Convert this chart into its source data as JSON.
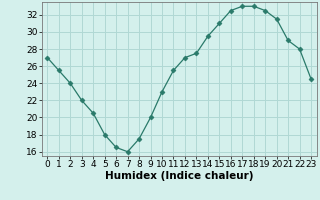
{
  "x": [
    0,
    1,
    2,
    3,
    4,
    5,
    6,
    7,
    8,
    9,
    10,
    11,
    12,
    13,
    14,
    15,
    16,
    17,
    18,
    19,
    20,
    21,
    22,
    23
  ],
  "y": [
    27,
    25.5,
    24,
    22,
    20.5,
    18,
    16.5,
    16,
    17.5,
    20,
    23,
    25.5,
    27,
    27.5,
    29.5,
    31,
    32.5,
    33,
    33,
    32.5,
    31.5,
    29,
    28,
    24.5
  ],
  "line_color": "#2a7a6a",
  "marker": "D",
  "marker_size": 2.5,
  "bg_color": "#d4f0ec",
  "grid_color": "#b0d8d4",
  "xlabel": "Humidex (Indice chaleur)",
  "ylim": [
    15.5,
    33.5
  ],
  "yticks": [
    16,
    18,
    20,
    22,
    24,
    26,
    28,
    30,
    32
  ],
  "xlim": [
    -0.5,
    23.5
  ],
  "xticks": [
    0,
    1,
    2,
    3,
    4,
    5,
    6,
    7,
    8,
    9,
    10,
    11,
    12,
    13,
    14,
    15,
    16,
    17,
    18,
    19,
    20,
    21,
    22,
    23
  ],
  "xlabel_fontsize": 7.5,
  "tick_fontsize": 6.5
}
